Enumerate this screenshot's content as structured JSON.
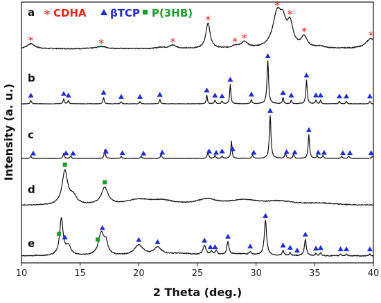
{
  "chart_data": {
    "type": "line",
    "title": "",
    "xlabel": "2 Theta (deg.)",
    "ylabel": "Intensity (a. u.)",
    "xlim": [
      10,
      40
    ],
    "xticks": [
      10,
      15,
      20,
      25,
      30,
      35,
      40
    ],
    "legend": {
      "placement": "top-left",
      "entries": [
        {
          "symbol": "*",
          "label": "CDHA",
          "color": "#e8241c",
          "marker": "asterisk"
        },
        {
          "symbol": "▲",
          "label": "βTCP",
          "color": "#1f2bd6",
          "marker": "triangle"
        },
        {
          "symbol": "■",
          "label": "P(3HB)",
          "color": "#1a9c2a",
          "marker": "square"
        }
      ]
    },
    "colors": {
      "CDHA": "#e8241c",
      "TCP": "#1f2bd6",
      "PHB": "#1a9c2a",
      "trace": "#111111"
    },
    "series": [
      {
        "label": "a",
        "type": "broad",
        "background": 0.05,
        "peaks": [
          [
            10.8,
            0.15,
            0.4
          ],
          [
            16.8,
            0.07,
            0.5
          ],
          [
            21.9,
            0.04,
            0.4
          ],
          [
            22.9,
            0.1,
            0.35
          ],
          [
            25.9,
            0.75,
            0.22
          ],
          [
            28.2,
            0.07,
            0.3
          ],
          [
            29.0,
            0.18,
            0.35
          ],
          [
            31.8,
            1.0,
            0.45
          ],
          [
            32.3,
            0.55,
            0.3
          ],
          [
            32.9,
            0.65,
            0.3
          ],
          [
            34.1,
            0.32,
            0.3
          ],
          [
            35.5,
            0.05,
            0.4
          ],
          [
            39.8,
            0.3,
            0.5
          ]
        ],
        "markers": [
          {
            "type": "CDHA",
            "x": 10.8
          },
          {
            "type": "CDHA",
            "x": 16.8
          },
          {
            "type": "CDHA",
            "x": 22.9
          },
          {
            "type": "CDHA",
            "x": 25.9
          },
          {
            "type": "CDHA",
            "x": 28.2
          },
          {
            "type": "CDHA",
            "x": 29.0
          },
          {
            "type": "CDHA",
            "x": 31.8
          },
          {
            "type": "CDHA",
            "x": 32.9
          },
          {
            "type": "CDHA",
            "x": 34.1
          },
          {
            "type": "CDHA",
            "x": 39.8
          }
        ]
      },
      {
        "label": "b",
        "type": "sharp",
        "background": 0.0,
        "peaks": [
          [
            10.8,
            0.08,
            0.06
          ],
          [
            13.6,
            0.12,
            0.06
          ],
          [
            14.0,
            0.08,
            0.06
          ],
          [
            17.0,
            0.15,
            0.06
          ],
          [
            18.5,
            0.05,
            0.06
          ],
          [
            20.1,
            0.05,
            0.06
          ],
          [
            21.8,
            0.1,
            0.06
          ],
          [
            25.8,
            0.2,
            0.06
          ],
          [
            26.5,
            0.08,
            0.06
          ],
          [
            27.1,
            0.06,
            0.06
          ],
          [
            27.8,
            0.45,
            0.06
          ],
          [
            29.6,
            0.1,
            0.06
          ],
          [
            31.0,
            1.0,
            0.08
          ],
          [
            32.3,
            0.14,
            0.06
          ],
          [
            33.0,
            0.08,
            0.06
          ],
          [
            34.3,
            0.55,
            0.07
          ],
          [
            35.1,
            0.08,
            0.06
          ],
          [
            35.5,
            0.08,
            0.06
          ],
          [
            37.1,
            0.06,
            0.06
          ],
          [
            37.7,
            0.06,
            0.06
          ],
          [
            39.7,
            0.06,
            0.06
          ]
        ],
        "markers": [
          {
            "type": "TCP",
            "x": 10.8
          },
          {
            "type": "TCP",
            "x": 13.6
          },
          {
            "type": "TCP",
            "x": 14.0
          },
          {
            "type": "TCP",
            "x": 17.0
          },
          {
            "type": "TCP",
            "x": 18.5
          },
          {
            "type": "TCP",
            "x": 20.1
          },
          {
            "type": "TCP",
            "x": 21.8
          },
          {
            "type": "TCP",
            "x": 25.8
          },
          {
            "type": "TCP",
            "x": 26.5
          },
          {
            "type": "TCP",
            "x": 27.1
          },
          {
            "type": "TCP",
            "x": 27.8
          },
          {
            "type": "TCP",
            "x": 29.6
          },
          {
            "type": "TCP",
            "x": 31.0
          },
          {
            "type": "TCP",
            "x": 32.3
          },
          {
            "type": "TCP",
            "x": 33.0
          },
          {
            "type": "TCP",
            "x": 34.3
          },
          {
            "type": "TCP",
            "x": 35.1
          },
          {
            "type": "TCP",
            "x": 35.5
          },
          {
            "type": "TCP",
            "x": 37.1
          },
          {
            "type": "TCP",
            "x": 37.7
          },
          {
            "type": "TCP",
            "x": 39.7
          }
        ]
      },
      {
        "label": "c",
        "type": "sharp",
        "background": 0.0,
        "peaks": [
          [
            10.8,
            0.06,
            0.06
          ],
          [
            13.6,
            0.12,
            0.06
          ],
          [
            14.2,
            0.06,
            0.06
          ],
          [
            17.1,
            0.2,
            0.06
          ],
          [
            18.5,
            0.05,
            0.06
          ],
          [
            20.2,
            0.05,
            0.06
          ],
          [
            21.9,
            0.1,
            0.06
          ],
          [
            25.9,
            0.18,
            0.06
          ],
          [
            26.5,
            0.07,
            0.06
          ],
          [
            27.1,
            0.05,
            0.06
          ],
          [
            27.9,
            0.4,
            0.06
          ],
          [
            29.7,
            0.08,
            0.06
          ],
          [
            31.2,
            1.0,
            0.08
          ],
          [
            32.5,
            0.14,
            0.06
          ],
          [
            33.2,
            0.1,
            0.06
          ],
          [
            34.5,
            0.55,
            0.07
          ],
          [
            35.2,
            0.07,
            0.06
          ],
          [
            35.7,
            0.07,
            0.06
          ],
          [
            37.3,
            0.05,
            0.06
          ],
          [
            37.9,
            0.05,
            0.06
          ],
          [
            39.9,
            0.05,
            0.06
          ]
        ],
        "markers": [
          {
            "type": "TCP",
            "x": 11.0
          },
          {
            "type": "TCP",
            "x": 13.8
          },
          {
            "type": "TCP",
            "x": 14.4
          },
          {
            "type": "TCP",
            "x": 17.2
          },
          {
            "type": "TCP",
            "x": 18.6
          },
          {
            "type": "TCP",
            "x": 20.4
          },
          {
            "type": "TCP",
            "x": 22.0
          },
          {
            "type": "TCP",
            "x": 26.0
          },
          {
            "type": "TCP",
            "x": 26.6
          },
          {
            "type": "TCP",
            "x": 27.1
          },
          {
            "type": "TCP",
            "x": 28.0
          },
          {
            "type": "TCP",
            "x": 29.8
          },
          {
            "type": "TCP",
            "x": 31.2
          },
          {
            "type": "TCP",
            "x": 32.6
          },
          {
            "type": "TCP",
            "x": 33.3
          },
          {
            "type": "TCP",
            "x": 34.5
          },
          {
            "type": "TCP",
            "x": 35.3
          },
          {
            "type": "TCP",
            "x": 35.8
          },
          {
            "type": "TCP",
            "x": 37.4
          },
          {
            "type": "TCP",
            "x": 38.0
          },
          {
            "type": "TCP",
            "x": 39.8
          }
        ]
      },
      {
        "label": "d",
        "type": "broad",
        "background": 0.0,
        "peaks": [
          [
            13.7,
            1.0,
            0.28
          ],
          [
            14.4,
            0.25,
            0.35
          ],
          [
            17.1,
            0.5,
            0.35
          ],
          [
            20.0,
            0.15,
            1.2
          ],
          [
            22.0,
            0.12,
            1.2
          ],
          [
            25.8,
            0.16,
            1.0
          ],
          [
            29.0,
            0.14,
            1.5
          ],
          [
            32.0,
            0.1,
            1.5
          ],
          [
            35.5,
            0.05,
            1.5
          ]
        ],
        "markers": [
          {
            "type": "PHB",
            "x": 13.7
          },
          {
            "type": "PHB",
            "x": 17.1
          }
        ]
      },
      {
        "label": "e",
        "type": "mixed",
        "background": 0.0,
        "peaks": [
          [
            13.4,
            1.0,
            0.18
          ],
          [
            14.0,
            0.25,
            0.25
          ],
          [
            16.8,
            0.6,
            0.28
          ],
          [
            17.2,
            0.3,
            0.2
          ],
          [
            20.0,
            0.28,
            0.45
          ],
          [
            21.6,
            0.2,
            0.4
          ],
          [
            25.6,
            0.25,
            0.15
          ],
          [
            26.2,
            0.1,
            0.1
          ],
          [
            26.6,
            0.12,
            0.1
          ],
          [
            27.6,
            0.35,
            0.1
          ],
          [
            29.5,
            0.08,
            0.1
          ],
          [
            30.8,
            0.95,
            0.12
          ],
          [
            32.3,
            0.14,
            0.08
          ],
          [
            32.9,
            0.08,
            0.08
          ],
          [
            34.2,
            0.45,
            0.1
          ],
          [
            35.1,
            0.06,
            0.08
          ],
          [
            35.5,
            0.08,
            0.08
          ],
          [
            37.2,
            0.05,
            0.08
          ],
          [
            37.7,
            0.05,
            0.08
          ],
          [
            39.7,
            0.05,
            0.08
          ],
          [
            23.5,
            0.06,
            1.5
          ],
          [
            28.5,
            0.05,
            1.5
          ]
        ],
        "markers": [
          {
            "type": "PHB",
            "x": 13.2
          },
          {
            "type": "TCP",
            "x": 13.7
          },
          {
            "type": "PHB",
            "x": 16.5
          },
          {
            "type": "TCP",
            "x": 16.9
          },
          {
            "type": "TCP",
            "x": 20.0
          },
          {
            "type": "TCP",
            "x": 21.6
          },
          {
            "type": "TCP",
            "x": 25.6
          },
          {
            "type": "TCP",
            "x": 26.1
          },
          {
            "type": "TCP",
            "x": 26.5
          },
          {
            "type": "TCP",
            "x": 27.6
          },
          {
            "type": "TCP",
            "x": 29.5
          },
          {
            "type": "TCP",
            "x": 30.8
          },
          {
            "type": "TCP",
            "x": 32.3
          },
          {
            "type": "TCP",
            "x": 32.9
          },
          {
            "type": "TCP",
            "x": 33.5
          },
          {
            "type": "TCP",
            "x": 34.2
          },
          {
            "type": "TCP",
            "x": 35.1
          },
          {
            "type": "TCP",
            "x": 35.5
          },
          {
            "type": "TCP",
            "x": 37.2
          },
          {
            "type": "TCP",
            "x": 37.7
          },
          {
            "type": "TCP",
            "x": 39.7
          }
        ]
      }
    ]
  }
}
